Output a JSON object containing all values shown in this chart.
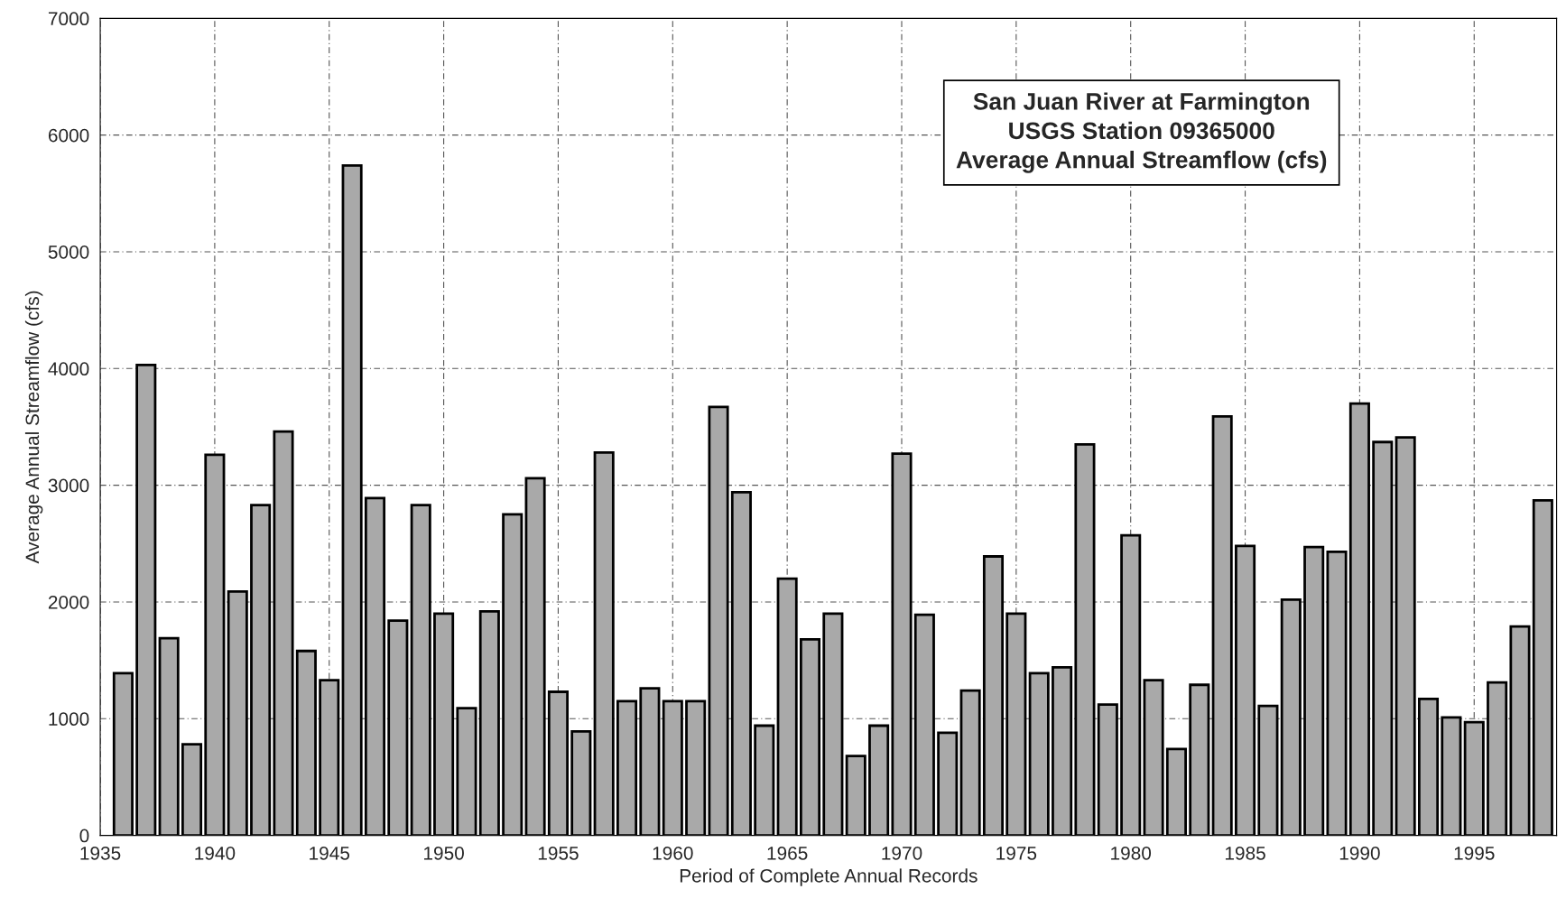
{
  "chart_data": {
    "type": "bar",
    "title": "San Juan River at Farmington\nUSGS Station 09365000\nAverage Annual Streamflow (cfs)",
    "xlabel": "Period of Complete Annual Records",
    "ylabel": "Average Annual Streamflow (cfs)",
    "x": [
      1936,
      1937,
      1938,
      1939,
      1940,
      1941,
      1942,
      1943,
      1944,
      1945,
      1946,
      1947,
      1948,
      1949,
      1950,
      1951,
      1952,
      1953,
      1954,
      1955,
      1956,
      1957,
      1958,
      1959,
      1960,
      1961,
      1962,
      1963,
      1964,
      1965,
      1966,
      1967,
      1968,
      1969,
      1970,
      1971,
      1972,
      1973,
      1974,
      1975,
      1976,
      1977,
      1978,
      1979,
      1980,
      1981,
      1982,
      1983,
      1984,
      1985,
      1986,
      1987,
      1988,
      1989,
      1990,
      1991,
      1992,
      1993,
      1994,
      1995,
      1996,
      1997,
      1998
    ],
    "values": [
      1390,
      4030,
      1690,
      780,
      3260,
      2090,
      2830,
      3460,
      1580,
      1330,
      5740,
      2890,
      1840,
      2830,
      1900,
      1090,
      1920,
      2750,
      3060,
      1230,
      890,
      3280,
      1150,
      1260,
      1150,
      1150,
      3670,
      2940,
      940,
      2200,
      1680,
      1900,
      680,
      940,
      3270,
      1890,
      880,
      1240,
      2390,
      1900,
      1390,
      1440,
      3350,
      1120,
      2570,
      1330,
      740,
      1290,
      3590,
      2480,
      1110,
      2020,
      2470,
      2430,
      3700,
      3370,
      3410,
      1170,
      1010,
      970,
      1310,
      1790,
      2870
    ],
    "color": "#a9a9a9",
    "xlim": [
      1935,
      1998.6
    ],
    "xticks": [
      1935,
      1940,
      1945,
      1950,
      1955,
      1960,
      1965,
      1970,
      1975,
      1980,
      1985,
      1990,
      1995
    ],
    "ylim": [
      0,
      7000
    ],
    "yticks": [
      0,
      1000,
      2000,
      3000,
      4000,
      5000,
      6000,
      7000
    ],
    "grid": true,
    "legend": false
  }
}
